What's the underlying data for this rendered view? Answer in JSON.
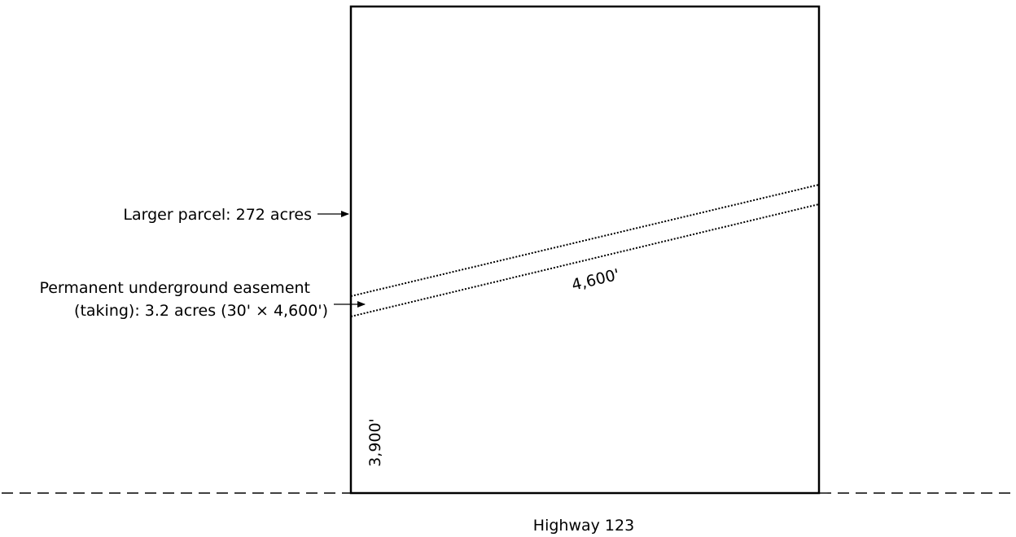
{
  "diagram": {
    "parcel_label": "Larger parcel: 272 acres",
    "easement_label_line1": "Permanent underground easement",
    "easement_label_line2": "(taking): 3.2 acres (30' × 4,600')",
    "easement_length": "4,600'",
    "parcel_side_length": "3,900'",
    "highway_label": "Highway 123"
  },
  "colors": {
    "line": "#000000",
    "background": "#ffffff"
  }
}
